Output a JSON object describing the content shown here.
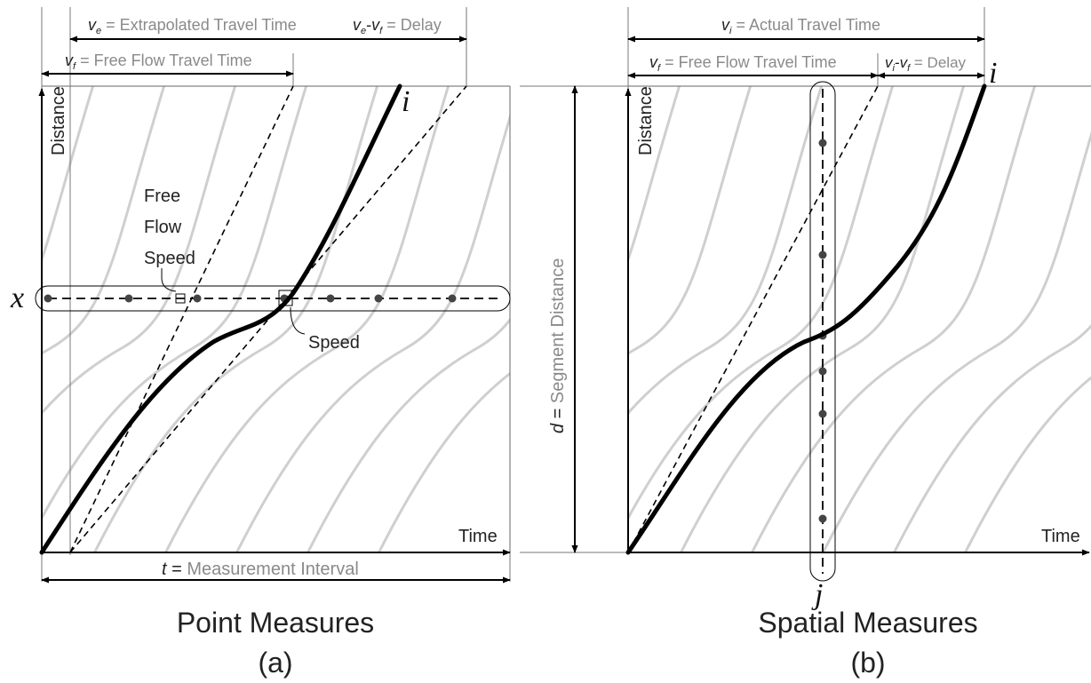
{
  "panel_a": {
    "title": "Point Measures",
    "caption": "(a)",
    "y_axis": "Distance",
    "x_axis": "Time",
    "trajectory_label": "i",
    "location_label": "x",
    "extrap_sym": "v",
    "extrap_sub": "e",
    "extrap_text": " = Extrapolated Travel Time",
    "delay_sym1": "v",
    "delay_sub1": "e",
    "delay_mid": "-",
    "delay_sym2": "v",
    "delay_sub2": "f",
    "delay_text": " = Delay",
    "free_sym": "v",
    "free_sub": "f",
    "free_text": " = Free Flow Travel Time",
    "free_flow_speed": [
      "Free",
      "Flow",
      "Speed"
    ],
    "speed_label": "Speed",
    "interval_sym": "t",
    "interval_eq": " = ",
    "interval_text": "Measurement Interval"
  },
  "panel_b": {
    "title": "Spatial Measures",
    "caption": "(b)",
    "y_axis": "Distance",
    "x_axis": "Time",
    "trajectory_label": "i",
    "time_label": "j",
    "actual_sym": "v",
    "actual_sub": "i",
    "actual_text": " = Actual Travel Time",
    "free_sym": "v",
    "free_sub": "f",
    "free_text": " = Free Flow Travel Time",
    "delay_sym1": "v",
    "delay_sub1": "i",
    "delay_mid": "-",
    "delay_sym2": "v",
    "delay_sub2": "f",
    "delay_text": " = Delay",
    "segment_sym": "d",
    "segment_eq": " = ",
    "segment_text": "Segment Distance"
  },
  "colors": {
    "background_traj": "#cfcfcf",
    "ink": "#000000",
    "gray_text": "#8a8a8a",
    "dot": "#444444"
  }
}
